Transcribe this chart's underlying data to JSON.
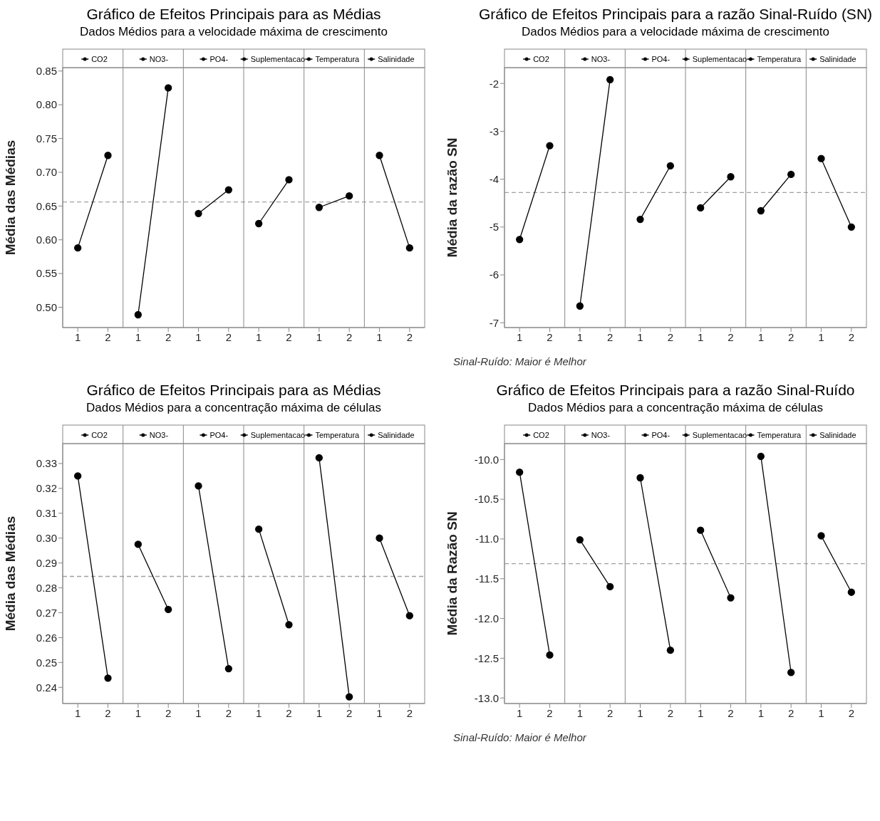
{
  "chart_data": [
    {
      "type": "line",
      "title": "Gráfico de Efeitos Principais para as Médias",
      "subtitle": "Dados Médios para a velocidade máxima de crescimento",
      "ylabel": "Média das Médias",
      "categories": [
        "1",
        "2",
        "1",
        "2",
        "1",
        "2",
        "1",
        "2",
        "1",
        "2",
        "1",
        "2"
      ],
      "series": [
        {
          "name": "CO2",
          "color": "#000000",
          "values": [
            0.588,
            0.725,
            null,
            null,
            null,
            null,
            null,
            null,
            null,
            null,
            null,
            null
          ]
        },
        {
          "name": "NO3-",
          "color": "#000000",
          "values": [
            null,
            null,
            0.489,
            0.825,
            null,
            null,
            null,
            null,
            null,
            null,
            null,
            null
          ]
        },
        {
          "name": "PO4-",
          "color": "#000000",
          "values": [
            null,
            null,
            null,
            null,
            0.639,
            0.674,
            null,
            null,
            null,
            null,
            null,
            null
          ]
        },
        {
          "name": "Suplementacao",
          "color": "#000000",
          "values": [
            null,
            null,
            null,
            null,
            null,
            null,
            0.624,
            0.689,
            null,
            null,
            null,
            null
          ]
        },
        {
          "name": "Temperatura",
          "color": "#000000",
          "values": [
            null,
            null,
            null,
            null,
            null,
            null,
            null,
            null,
            0.648,
            0.665,
            null,
            null
          ]
        },
        {
          "name": "Salinidade",
          "color": "#000000",
          "values": [
            null,
            null,
            null,
            null,
            null,
            null,
            null,
            null,
            null,
            null,
            0.725,
            0.588
          ]
        }
      ],
      "ylim": [
        0.47,
        0.855
      ],
      "yticks": [
        {
          "value": 0.5,
          "label": "0.50"
        },
        0.55,
        {
          "value": 0.6,
          "label": "0.60"
        },
        0.65,
        {
          "value": 0.7,
          "label": "0.70"
        },
        0.75,
        {
          "value": 0.8,
          "label": "0.80"
        },
        0.85
      ],
      "ref_lines": [
        {
          "axis": "y",
          "value": 0.656,
          "color": "#a0a0a0",
          "line_style": "dashed"
        }
      ],
      "marker": "circle",
      "line_style": "solid",
      "legend": "top"
    },
    {
      "type": "line",
      "title": "Gráfico de Efeitos Principais para a razão Sinal-Ruído (SN)",
      "subtitle": "Dados Médios para a velocidade máxima de crescimento",
      "ylabel": "Média da razão SN",
      "categories": [
        "1",
        "2",
        "1",
        "2",
        "1",
        "2",
        "1",
        "2",
        "1",
        "2",
        "1",
        "2"
      ],
      "series": [
        {
          "name": "CO2",
          "color": "#000000",
          "values": [
            -5.26,
            -3.3,
            null,
            null,
            null,
            null,
            null,
            null,
            null,
            null,
            null,
            null
          ]
        },
        {
          "name": "NO3-",
          "color": "#000000",
          "values": [
            null,
            null,
            -6.65,
            -1.92,
            null,
            null,
            null,
            null,
            null,
            null,
            null,
            null
          ]
        },
        {
          "name": "PO4-",
          "color": "#000000",
          "values": [
            null,
            null,
            null,
            null,
            -4.84,
            -3.72,
            null,
            null,
            null,
            null,
            null,
            null
          ]
        },
        {
          "name": "Suplementacao",
          "color": "#000000",
          "values": [
            null,
            null,
            null,
            null,
            null,
            null,
            -4.6,
            -3.95,
            null,
            null,
            null,
            null
          ]
        },
        {
          "name": "Temperatura",
          "color": "#000000",
          "values": [
            null,
            null,
            null,
            null,
            null,
            null,
            null,
            null,
            -4.66,
            -3.9,
            null,
            null
          ]
        },
        {
          "name": "Salinidade",
          "color": "#000000",
          "values": [
            null,
            null,
            null,
            null,
            null,
            null,
            null,
            null,
            null,
            null,
            -3.57,
            -5.0
          ]
        }
      ],
      "ylim": [
        -7.1,
        -1.67
      ],
      "yticks": [
        -7,
        -6,
        -5,
        -4,
        -3,
        -2
      ],
      "ref_lines": [
        {
          "axis": "y",
          "value": -4.28,
          "color": "#a0a0a0",
          "line_style": "dashed"
        }
      ],
      "marker": "circle",
      "line_style": "solid",
      "legend": "top",
      "annotations": [
        "Sinal-Ruído: Maior é Melhor"
      ]
    },
    {
      "type": "line",
      "title": "Gráfico de Efeitos Principais para as Médias",
      "subtitle": "Dados Médios para a concentração máxima de células",
      "ylabel": "Média das Médias",
      "categories": [
        "1",
        "2",
        "1",
        "2",
        "1",
        "2",
        "1",
        "2",
        "1",
        "2",
        "1",
        "2"
      ],
      "series": [
        {
          "name": "CO2",
          "color": "#000000",
          "values": [
            0.325,
            0.2437,
            null,
            null,
            null,
            null,
            null,
            null,
            null,
            null,
            null,
            null
          ]
        },
        {
          "name": "NO3-",
          "color": "#000000",
          "values": [
            null,
            null,
            0.2975,
            0.2713,
            null,
            null,
            null,
            null,
            null,
            null,
            null,
            null
          ]
        },
        {
          "name": "PO4-",
          "color": "#000000",
          "values": [
            null,
            null,
            null,
            null,
            0.321,
            0.2475,
            null,
            null,
            null,
            null,
            null,
            null
          ]
        },
        {
          "name": "Suplementacao",
          "color": "#000000",
          "values": [
            null,
            null,
            null,
            null,
            null,
            null,
            0.3036,
            0.2652,
            null,
            null,
            null,
            null
          ]
        },
        {
          "name": "Temperatura",
          "color": "#000000",
          "values": [
            null,
            null,
            null,
            null,
            null,
            null,
            null,
            null,
            0.3323,
            0.2362,
            null,
            null
          ]
        },
        {
          "name": "Salinidade",
          "color": "#000000",
          "values": [
            null,
            null,
            null,
            null,
            null,
            null,
            null,
            null,
            null,
            null,
            0.3,
            0.2688
          ]
        }
      ],
      "ylim": [
        0.2335,
        0.338
      ],
      "yticks": [
        0.24,
        0.25,
        0.26,
        0.27,
        0.28,
        0.29,
        {
          "value": 0.3,
          "label": "0.30"
        },
        0.31,
        0.32,
        0.33
      ],
      "ref_lines": [
        {
          "axis": "y",
          "value": 0.2846,
          "color": "#a0a0a0",
          "line_style": "dashed"
        }
      ],
      "marker": "circle",
      "line_style": "solid",
      "legend": "top"
    },
    {
      "type": "line",
      "title": "Gráfico de Efeitos Principais para a razão Sinal-Ruído",
      "subtitle": "Dados Médios para a concentração máxima de células",
      "ylabel": "Média da Razão SN",
      "categories": [
        "1",
        "2",
        "1",
        "2",
        "1",
        "2",
        "1",
        "2",
        "1",
        "2",
        "1",
        "2"
      ],
      "series": [
        {
          "name": "CO2",
          "color": "#000000",
          "values": [
            -10.16,
            -12.46,
            null,
            null,
            null,
            null,
            null,
            null,
            null,
            null,
            null,
            null
          ]
        },
        {
          "name": "NO3-",
          "color": "#000000",
          "values": [
            null,
            null,
            -11.01,
            -11.6,
            null,
            null,
            null,
            null,
            null,
            null,
            null,
            null
          ]
        },
        {
          "name": "PO4-",
          "color": "#000000",
          "values": [
            null,
            null,
            null,
            null,
            -10.23,
            -12.4,
            null,
            null,
            null,
            null,
            null,
            null
          ]
        },
        {
          "name": "Suplementacao",
          "color": "#000000",
          "values": [
            null,
            null,
            null,
            null,
            null,
            null,
            -10.89,
            -11.74,
            null,
            null,
            null,
            null
          ]
        },
        {
          "name": "Temperatura",
          "color": "#000000",
          "values": [
            null,
            null,
            null,
            null,
            null,
            null,
            null,
            null,
            -9.96,
            -12.68,
            null,
            null
          ]
        },
        {
          "name": "Salinidade",
          "color": "#000000",
          "values": [
            null,
            null,
            null,
            null,
            null,
            null,
            null,
            null,
            null,
            null,
            -10.96,
            -11.67
          ]
        }
      ],
      "ylim": [
        -13.07,
        -9.8
      ],
      "yticks": [
        {
          "value": -13,
          "label": "-13.0"
        },
        -12.5,
        {
          "value": -12,
          "label": "-12.0"
        },
        -11.5,
        {
          "value": -11,
          "label": "-11.0"
        },
        -10.5,
        {
          "value": -10,
          "label": "-10.0"
        }
      ],
      "ref_lines": [
        {
          "axis": "y",
          "value": -11.31,
          "color": "#a0a0a0",
          "line_style": "dashed"
        }
      ],
      "marker": "circle",
      "line_style": "solid",
      "legend": "top",
      "annotations": [
        "Sinal-Ruído: Maior é Melhor"
      ]
    }
  ]
}
